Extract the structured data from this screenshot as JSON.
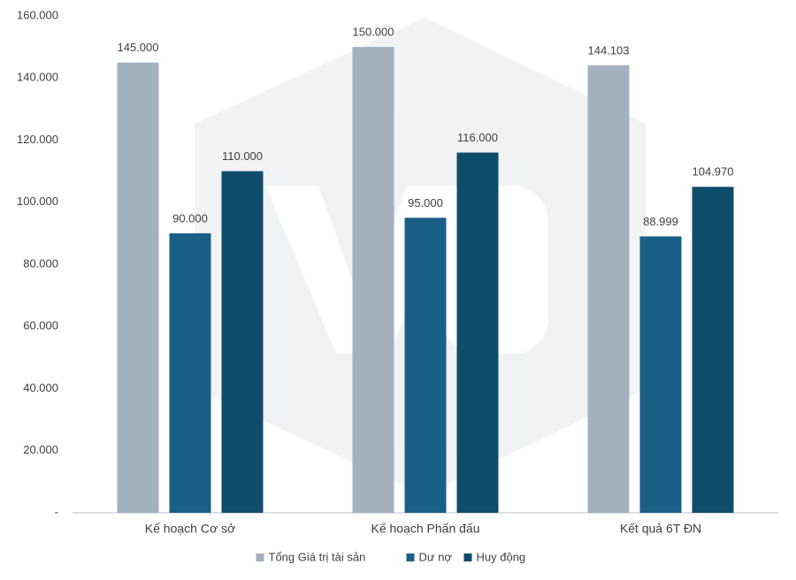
{
  "chart_data": {
    "type": "bar",
    "categories": [
      "Kế hoạch Cơ sở",
      "Kế hoạch Phấn đấu",
      "Kết quả 6T ĐN"
    ],
    "series": [
      {
        "name": "Tổng Giá trị tài sản",
        "color": "#a3b1bf",
        "values": [
          145000,
          150000,
          144103
        ],
        "value_labels": [
          "145.000",
          "150.000",
          "144.103"
        ]
      },
      {
        "name": "Dư nợ",
        "color": "#1a5f86",
        "values": [
          90000,
          95000,
          88999
        ],
        "value_labels": [
          "90.000",
          "95.000",
          "88.999"
        ]
      },
      {
        "name": "Huy động",
        "color": "#0f4c6a",
        "values": [
          110000,
          116000,
          104970
        ],
        "value_labels": [
          "110.000",
          "116.000",
          "104.970"
        ]
      }
    ],
    "ylim": [
      0,
      160000
    ],
    "yticks": [
      {
        "value": 0,
        "label": "-"
      },
      {
        "value": 20000,
        "label": "20.000"
      },
      {
        "value": 40000,
        "label": "40.000"
      },
      {
        "value": 60000,
        "label": "60.000"
      },
      {
        "value": 80000,
        "label": "80.000"
      },
      {
        "value": 100000,
        "label": "100.000"
      },
      {
        "value": 120000,
        "label": "120.000"
      },
      {
        "value": 140000,
        "label": "140.000"
      },
      {
        "value": 160000,
        "label": "160.000"
      }
    ],
    "grid": false,
    "legend": "bottom"
  }
}
